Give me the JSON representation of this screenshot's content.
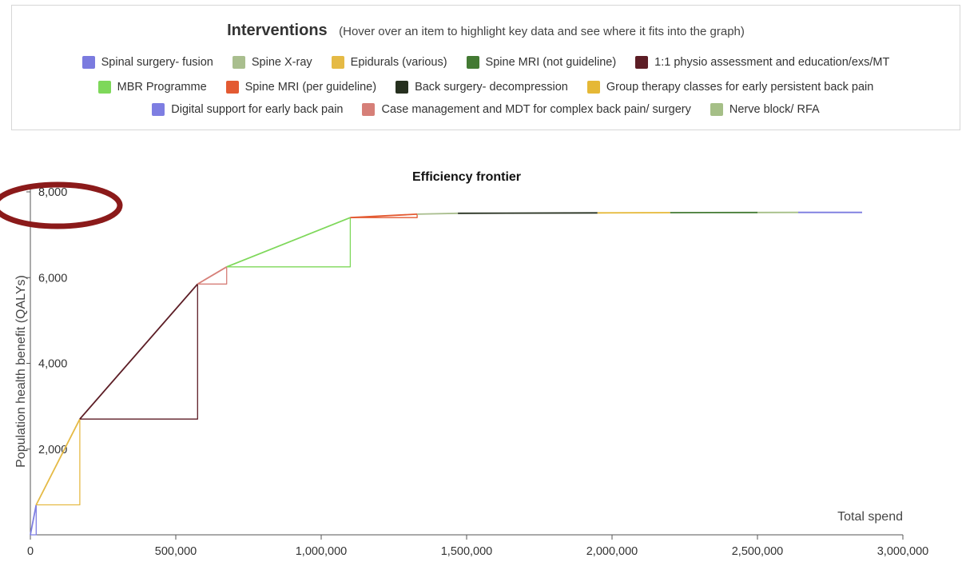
{
  "legend": {
    "title": "Interventions",
    "hint": "(Hover over an item to highlight key data and see where it fits into the graph)",
    "rows": [
      [
        {
          "label": "Spinal surgery- fusion",
          "color": "#7b7bdf"
        },
        {
          "label": "Spine X-ray",
          "color": "#a9be8e"
        },
        {
          "label": "Epidurals (various)",
          "color": "#e5ba45"
        },
        {
          "label": "Spine MRI (not guideline)",
          "color": "#437a33"
        },
        {
          "label": "1:1 physio assessment and education/exs/MT",
          "color": "#5c1d25"
        }
      ],
      [
        {
          "label": "MBR Programme",
          "color": "#7ed85a"
        },
        {
          "label": "Spine MRI (per guideline)",
          "color": "#e35a32"
        },
        {
          "label": "Back surgery- decompression",
          "color": "#26301f"
        },
        {
          "label": "Group therapy classes for early persistent back pain",
          "color": "#e5b836"
        }
      ],
      [
        {
          "label": "Digital support for early back pain",
          "color": "#7e7ee2"
        },
        {
          "label": "Case management and MDT for complex back pain/ surgery",
          "color": "#d67f78"
        },
        {
          "label": "Nerve block/ RFA",
          "color": "#a5bf87"
        }
      ]
    ]
  },
  "chart_data": {
    "type": "line",
    "title": "Efficiency frontier",
    "xlabel": "Total spend",
    "ylabel": "Population health benefit (QALYs)",
    "xlim": [
      0,
      3000000
    ],
    "ylim": [
      0,
      8000
    ],
    "xticks": [
      0,
      500000,
      1000000,
      1500000,
      2000000,
      2500000,
      3000000
    ],
    "xtick_labels": [
      "0",
      "500,000",
      "1,000,000",
      "1,500,000",
      "2,000,000",
      "2,500,000",
      "3,000,000"
    ],
    "yticks": [
      2000,
      4000,
      6000,
      8000
    ],
    "ytick_labels": [
      "2,000",
      "4,000",
      "6,000",
      "8,000"
    ],
    "grid": false,
    "annotation": {
      "shape": "ellipse",
      "color": "#8b1a1a",
      "around": "y-axis top label"
    },
    "series": [
      {
        "name": "Digital support for early back pain",
        "color": "#7e7ee2",
        "segments": [
          [
            [
              0,
              0
            ],
            [
              20000,
              700
            ]
          ],
          [
            [
              0,
              0
            ],
            [
              20000,
              0
            ],
            [
              20000,
              700
            ]
          ]
        ]
      },
      {
        "name": "Epidurals (various)",
        "color": "#e5ba45",
        "segments": [
          [
            [
              20000,
              700
            ],
            [
              170000,
              2700
            ]
          ],
          [
            [
              20000,
              700
            ],
            [
              170000,
              700
            ],
            [
              170000,
              2700
            ]
          ]
        ]
      },
      {
        "name": "1:1 physio assessment and education/exs/MT",
        "color": "#5c1d25",
        "segments": [
          [
            [
              170000,
              2700
            ],
            [
              575000,
              5850
            ]
          ],
          [
            [
              170000,
              2700
            ],
            [
              575000,
              2700
            ],
            [
              575000,
              5850
            ]
          ]
        ]
      },
      {
        "name": "Case management and MDT for complex back pain/ surgery",
        "color": "#d67f78",
        "segments": [
          [
            [
              575000,
              5850
            ],
            [
              675000,
              6250
            ]
          ],
          [
            [
              575000,
              5850
            ],
            [
              675000,
              5850
            ],
            [
              675000,
              6250
            ]
          ]
        ]
      },
      {
        "name": "MBR Programme",
        "color": "#7ed85a",
        "segments": [
          [
            [
              675000,
              6250
            ],
            [
              1100000,
              7400
            ]
          ],
          [
            [
              675000,
              6250
            ],
            [
              1100000,
              6250
            ],
            [
              1100000,
              7400
            ]
          ]
        ]
      },
      {
        "name": "Spine MRI (per guideline)",
        "color": "#e35a32",
        "segments": [
          [
            [
              1100000,
              7400
            ],
            [
              1330000,
              7480
            ]
          ],
          [
            [
              1100000,
              7400
            ],
            [
              1330000,
              7400
            ],
            [
              1330000,
              7480
            ]
          ]
        ]
      },
      {
        "name": "Spine X-ray",
        "color": "#a9be8e",
        "segments": [
          [
            [
              1330000,
              7480
            ],
            [
              1470000,
              7500
            ]
          ]
        ]
      },
      {
        "name": "Back surgery- decompression",
        "color": "#26301f",
        "segments": [
          [
            [
              1470000,
              7500
            ],
            [
              1950000,
              7510
            ]
          ]
        ]
      },
      {
        "name": "Group therapy classes for early persistent back pain",
        "color": "#e5b836",
        "segments": [
          [
            [
              1950000,
              7510
            ],
            [
              2200000,
              7515
            ]
          ]
        ]
      },
      {
        "name": "Spine MRI (not guideline)",
        "color": "#437a33",
        "segments": [
          [
            [
              2200000,
              7515
            ],
            [
              2500000,
              7518
            ]
          ]
        ]
      },
      {
        "name": "Nerve block/ RFA",
        "color": "#a5bf87",
        "segments": [
          [
            [
              2500000,
              7518
            ],
            [
              2640000,
              7520
            ]
          ]
        ]
      },
      {
        "name": "Spinal surgery- fusion",
        "color": "#7b7bdf",
        "segments": [
          [
            [
              2640000,
              7520
            ],
            [
              2860000,
              7520
            ]
          ]
        ]
      }
    ]
  }
}
